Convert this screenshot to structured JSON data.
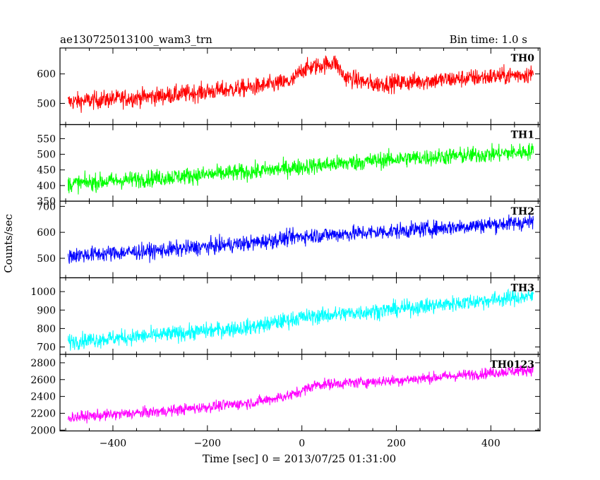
{
  "chart_data": {
    "type": "line",
    "title": "ae130725013100_wam3_trn",
    "bin_time_label": "Bin time: 1.0 s",
    "xlabel": "Time [sec] 0 = 2013/07/25 01:31:00",
    "ylabel": "Counts/sec",
    "xlim": [
      -512,
      504
    ],
    "xticks": [
      -400,
      -200,
      0,
      200,
      400
    ],
    "grid": false,
    "panels": [
      {
        "name": "TH0",
        "color": "#ff0000",
        "ylim": [
          428,
          688
        ],
        "yticks": [
          500,
          600
        ],
        "trend": [
          [
            -495,
            505
          ],
          [
            -300,
            525
          ],
          [
            -100,
            555
          ],
          [
            -20,
            575
          ],
          [
            0,
            615
          ],
          [
            70,
            640
          ],
          [
            90,
            590
          ],
          [
            150,
            565
          ],
          [
            300,
            580
          ],
          [
            490,
            600
          ]
        ],
        "noise": 28
      },
      {
        "name": "TH1",
        "color": "#00ff00",
        "ylim": [
          350,
          595
        ],
        "yticks": [
          350,
          400,
          450,
          500,
          550
        ],
        "trend": [
          [
            -495,
            405
          ],
          [
            -300,
            425
          ],
          [
            -100,
            445
          ],
          [
            0,
            460
          ],
          [
            200,
            485
          ],
          [
            400,
            500
          ],
          [
            490,
            510
          ]
        ],
        "noise": 25
      },
      {
        "name": "TH2",
        "color": "#0000ff",
        "ylim": [
          425,
          720
        ],
        "yticks": [
          500,
          600,
          700
        ],
        "trend": [
          [
            -495,
            510
          ],
          [
            -300,
            530
          ],
          [
            -100,
            560
          ],
          [
            0,
            585
          ],
          [
            200,
            605
          ],
          [
            400,
            630
          ],
          [
            490,
            640
          ]
        ],
        "noise": 28
      },
      {
        "name": "TH3",
        "color": "#00ffff",
        "ylim": [
          660,
          1075
        ],
        "yticks": [
          700,
          800,
          900,
          1000
        ],
        "trend": [
          [
            -495,
            730
          ],
          [
            -300,
            765
          ],
          [
            -100,
            810
          ],
          [
            0,
            860
          ],
          [
            200,
            905
          ],
          [
            400,
            955
          ],
          [
            490,
            975
          ]
        ],
        "noise": 40
      },
      {
        "name": "TH0123",
        "color": "#ff00ff",
        "ylim": [
          1990,
          2900
        ],
        "yticks": [
          2000,
          2200,
          2400,
          2600,
          2800
        ],
        "trend": [
          [
            -495,
            2150
          ],
          [
            -300,
            2220
          ],
          [
            -100,
            2330
          ],
          [
            -20,
            2420
          ],
          [
            30,
            2540
          ],
          [
            200,
            2590
          ],
          [
            400,
            2680
          ],
          [
            490,
            2720
          ]
        ],
        "noise": 60
      }
    ]
  }
}
